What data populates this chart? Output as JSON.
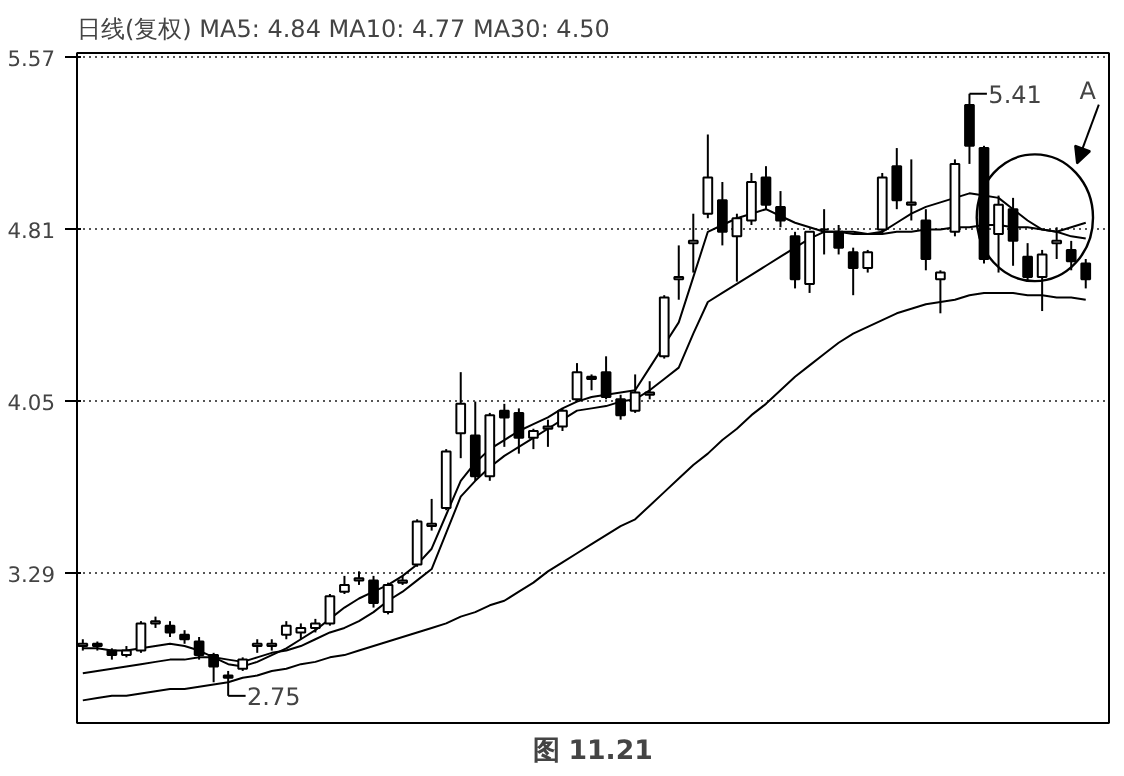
{
  "chart_data": {
    "type": "candlestick",
    "title": "日线(复权)  MA5: 4.84 MA10: 4.77 MA30: 4.50",
    "categories": [
      null,
      null,
      null,
      null,
      null,
      null,
      null,
      null,
      null,
      null,
      null,
      null,
      null,
      null,
      null,
      null,
      null,
      null,
      null,
      null,
      null,
      null,
      null,
      null,
      null,
      null,
      null,
      null,
      null,
      null,
      null,
      null,
      null,
      null,
      null,
      null,
      null,
      null,
      null,
      null,
      null,
      null,
      null,
      null,
      null,
      null,
      null,
      null,
      null,
      null,
      null,
      null,
      null,
      null,
      null,
      null,
      null,
      null,
      null,
      null,
      null,
      null,
      null,
      null,
      null,
      null,
      null,
      null,
      null,
      null
    ],
    "ohlc": [
      [
        2.97,
        3.0,
        2.95,
        2.98
      ],
      [
        2.98,
        2.99,
        2.95,
        2.97
      ],
      [
        2.95,
        2.96,
        2.91,
        2.93
      ],
      [
        2.93,
        2.97,
        2.92,
        2.95
      ],
      [
        2.95,
        3.08,
        2.94,
        3.07
      ],
      [
        3.07,
        3.1,
        3.05,
        3.08
      ],
      [
        3.06,
        3.08,
        3.01,
        3.03
      ],
      [
        3.02,
        3.04,
        2.98,
        3.0
      ],
      [
        2.99,
        3.01,
        2.91,
        2.93
      ],
      [
        2.93,
        2.94,
        2.81,
        2.88
      ],
      [
        2.84,
        2.86,
        2.75,
        2.83
      ],
      [
        2.87,
        2.92,
        2.86,
        2.91
      ],
      [
        2.97,
        3.0,
        2.94,
        2.98
      ],
      [
        2.97,
        3.0,
        2.95,
        2.98
      ],
      [
        3.02,
        3.08,
        3.0,
        3.06
      ],
      [
        3.03,
        3.07,
        3.0,
        3.05
      ],
      [
        3.05,
        3.09,
        3.03,
        3.07
      ],
      [
        3.07,
        3.2,
        3.06,
        3.19
      ],
      [
        3.21,
        3.28,
        3.2,
        3.24
      ],
      [
        3.26,
        3.3,
        3.24,
        3.27
      ],
      [
        3.26,
        3.28,
        3.14,
        3.16
      ],
      [
        3.12,
        3.25,
        3.11,
        3.24
      ],
      [
        3.25,
        3.28,
        3.24,
        3.26
      ],
      [
        3.33,
        3.53,
        3.32,
        3.52
      ],
      [
        3.5,
        3.62,
        3.48,
        3.51
      ],
      [
        3.58,
        3.84,
        3.57,
        3.83
      ],
      [
        3.91,
        4.18,
        3.8,
        4.04
      ],
      [
        3.9,
        4.05,
        3.7,
        3.72
      ],
      [
        3.72,
        4.0,
        3.7,
        3.99
      ],
      [
        4.01,
        4.04,
        3.85,
        3.98
      ],
      [
        4.0,
        4.02,
        3.82,
        3.89
      ],
      [
        3.89,
        3.93,
        3.84,
        3.92
      ],
      [
        3.93,
        3.97,
        3.85,
        3.94
      ],
      [
        3.94,
        4.02,
        3.92,
        4.01
      ],
      [
        4.06,
        4.22,
        4.05,
        4.18
      ],
      [
        4.16,
        4.17,
        4.1,
        4.15
      ],
      [
        4.18,
        4.25,
        4.06,
        4.07
      ],
      [
        4.06,
        4.08,
        3.97,
        3.99
      ],
      [
        4.01,
        4.17,
        4.0,
        4.09
      ],
      [
        4.08,
        4.14,
        4.06,
        4.09
      ],
      [
        4.25,
        4.52,
        4.24,
        4.51
      ],
      [
        4.59,
        4.74,
        4.5,
        4.6
      ],
      [
        4.75,
        4.88,
        4.62,
        4.76
      ],
      [
        4.88,
        5.23,
        4.86,
        5.04
      ],
      [
        4.94,
        5.02,
        4.74,
        4.8
      ],
      [
        4.78,
        4.88,
        4.58,
        4.86
      ],
      [
        4.85,
        5.06,
        4.83,
        5.02
      ],
      [
        5.04,
        5.09,
        4.9,
        4.92
      ],
      [
        4.91,
        4.98,
        4.82,
        4.85
      ],
      [
        4.78,
        4.8,
        4.55,
        4.59
      ],
      [
        4.57,
        4.8,
        4.53,
        4.8
      ],
      [
        4.81,
        4.9,
        4.7,
        4.81
      ],
      [
        4.8,
        4.83,
        4.7,
        4.73
      ],
      [
        4.71,
        4.73,
        4.52,
        4.64
      ],
      [
        4.64,
        4.72,
        4.62,
        4.71
      ],
      [
        4.81,
        5.06,
        4.79,
        5.04
      ],
      [
        5.09,
        5.17,
        4.9,
        4.94
      ],
      [
        4.92,
        5.12,
        4.85,
        4.93
      ],
      [
        4.85,
        4.9,
        4.63,
        4.68
      ],
      [
        4.59,
        4.63,
        4.44,
        4.62
      ],
      [
        4.8,
        5.12,
        4.78,
        5.1
      ],
      [
        5.36,
        5.41,
        5.1,
        5.18
      ],
      [
        5.17,
        5.18,
        4.66,
        4.68
      ],
      [
        4.79,
        4.96,
        4.62,
        4.92
      ],
      [
        4.9,
        4.95,
        4.65,
        4.76
      ],
      [
        4.69,
        4.75,
        4.58,
        4.6
      ],
      [
        4.6,
        4.72,
        4.45,
        4.7
      ],
      [
        4.75,
        4.82,
        4.68,
        4.76
      ],
      [
        4.72,
        4.76,
        4.63,
        4.67
      ],
      [
        4.66,
        4.68,
        4.55,
        4.59
      ]
    ],
    "series": [
      {
        "type": "line",
        "color": "#000000",
        "values": [
          2.96,
          2.96,
          2.95,
          2.95,
          2.96,
          2.97,
          2.98,
          2.97,
          2.95,
          2.92,
          2.89,
          2.88,
          2.9,
          2.93,
          2.96,
          3.0,
          3.04,
          3.09,
          3.14,
          3.18,
          3.21,
          3.24,
          3.28,
          3.33,
          3.4,
          3.55,
          3.7,
          3.78,
          3.84,
          3.88,
          3.92,
          3.95,
          3.98,
          4.02,
          4.05,
          4.07,
          4.08,
          4.09,
          4.1,
          4.2,
          4.3,
          4.4,
          4.6,
          4.8,
          4.83,
          4.86,
          4.88,
          4.9,
          4.87,
          4.84,
          4.82,
          4.8,
          4.8,
          4.79,
          4.79,
          4.8,
          4.84,
          4.88,
          4.91,
          4.93,
          4.95,
          4.97,
          4.96,
          4.95,
          4.9,
          4.85,
          4.81,
          4.8,
          4.82,
          4.84
        ]
      },
      {
        "type": "line",
        "color": "#000000",
        "values": [
          2.85,
          2.86,
          2.87,
          2.88,
          2.89,
          2.9,
          2.91,
          2.91,
          2.92,
          2.92,
          2.91,
          2.9,
          2.92,
          2.94,
          2.95,
          2.97,
          3.0,
          3.03,
          3.05,
          3.08,
          3.12,
          3.17,
          3.21,
          3.26,
          3.31,
          3.47,
          3.63,
          3.7,
          3.76,
          3.81,
          3.85,
          3.89,
          3.93,
          3.97,
          4.01,
          4.02,
          4.03,
          4.05,
          4.06,
          4.1,
          4.15,
          4.2,
          4.35,
          4.49,
          4.53,
          4.57,
          4.61,
          4.65,
          4.69,
          4.73,
          4.77,
          4.8,
          4.8,
          4.8,
          4.79,
          4.79,
          4.8,
          4.8,
          4.81,
          4.81,
          4.82,
          4.82,
          4.83,
          4.83,
          4.82,
          4.82,
          4.81,
          4.8,
          4.78,
          4.77
        ]
      },
      {
        "type": "line",
        "color": "#000000",
        "values": [
          2.73,
          2.74,
          2.75,
          2.75,
          2.76,
          2.77,
          2.78,
          2.78,
          2.79,
          2.8,
          2.81,
          2.83,
          2.84,
          2.86,
          2.87,
          2.89,
          2.9,
          2.92,
          2.93,
          2.95,
          2.97,
          2.99,
          3.01,
          3.03,
          3.05,
          3.07,
          3.1,
          3.12,
          3.15,
          3.17,
          3.21,
          3.25,
          3.3,
          3.34,
          3.38,
          3.42,
          3.46,
          3.5,
          3.53,
          3.59,
          3.65,
          3.71,
          3.77,
          3.82,
          3.88,
          3.93,
          3.99,
          4.04,
          4.1,
          4.16,
          4.21,
          4.26,
          4.31,
          4.35,
          4.38,
          4.41,
          4.44,
          4.46,
          4.48,
          4.49,
          4.5,
          4.52,
          4.53,
          4.53,
          4.53,
          4.52,
          4.52,
          4.51,
          4.51,
          4.5
        ]
      }
    ],
    "ylim": [
      2.63,
      5.59
    ],
    "yticks": [
      5.57,
      4.81,
      4.05,
      3.29
    ],
    "grid": "y",
    "annotations": [
      "图 11.21",
      "2.75",
      "5.41",
      "A"
    ]
  }
}
